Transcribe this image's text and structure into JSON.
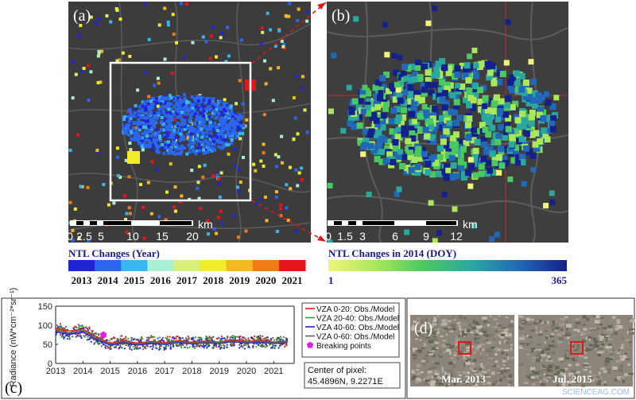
{
  "panel_a": {
    "label": "(a)",
    "scalebar_unit": "km",
    "scalebar_ticks": [
      "0",
      "2.5",
      "5",
      "10",
      "15",
      "20"
    ],
    "legend_title": "NTL Changes (Year)",
    "legend_years": [
      "2013",
      "2014",
      "2015",
      "2016",
      "2017",
      "2018",
      "2019",
      "2020",
      "2021"
    ],
    "legend_colors": [
      "#1f24d6",
      "#2a66f0",
      "#38b6f0",
      "#a8f0d4",
      "#d6f07a",
      "#f0ec28",
      "#f5b81e",
      "#f27c14",
      "#e8141c"
    ]
  },
  "panel_b": {
    "label": "(b)",
    "scalebar_unit": "km",
    "scalebar_ticks": [
      "0",
      "1.5",
      "3",
      "6",
      "9",
      "12"
    ],
    "legend_title": "NTL Changes in 2014 (DOY)",
    "legend_min": "1",
    "legend_max": "365",
    "legend_colors": [
      "#f0f57a",
      "#a8e85a",
      "#4cc860",
      "#2aa8a0",
      "#2268b8",
      "#14208c"
    ]
  },
  "panel_c": {
    "label": "(c)",
    "chart_data": {
      "type": "line",
      "ylabel": "Radiance (nW*cm⁻²*sr⁻¹)",
      "xlabel": "",
      "x_ticks": [
        "2013",
        "2014",
        "2015",
        "2016",
        "2017",
        "2018",
        "2019",
        "2020",
        "2021"
      ],
      "y_ticks": [
        0,
        50,
        100,
        150
      ],
      "ylim": [
        0,
        150
      ],
      "xlim": [
        2013,
        2021.75
      ],
      "series": [
        {
          "name": "VZA 0-20: Obs./Model",
          "color": "#e02020",
          "x": [
            2013.0,
            2013.5,
            2014.0,
            2014.5,
            2015.0,
            2015.5,
            2016.0,
            2016.5,
            2017.0,
            2017.5,
            2018.0,
            2018.5,
            2019.0,
            2019.5,
            2020.0,
            2020.5,
            2021.0,
            2021.5
          ],
          "values": [
            92,
            85,
            90,
            70,
            52,
            60,
            53,
            58,
            54,
            60,
            55,
            58,
            56,
            62,
            57,
            60,
            56,
            58
          ]
        },
        {
          "name": "VZA 20-40: Obs./Model",
          "color": "#22b022",
          "x": [
            2013.0,
            2013.5,
            2014.0,
            2014.5,
            2015.0,
            2015.5,
            2016.0,
            2016.5,
            2017.0,
            2017.5,
            2018.0,
            2018.5,
            2019.0,
            2019.5,
            2020.0,
            2020.5,
            2021.0,
            2021.5
          ],
          "values": [
            88,
            80,
            86,
            66,
            50,
            57,
            50,
            55,
            52,
            57,
            53,
            56,
            54,
            59,
            55,
            58,
            54,
            56
          ]
        },
        {
          "name": "VZA 40-60: Obs./Model",
          "color": "#2222d0",
          "x": [
            2013.0,
            2013.5,
            2014.0,
            2014.5,
            2015.0,
            2015.5,
            2016.0,
            2016.5,
            2017.0,
            2017.5,
            2018.0,
            2018.5,
            2019.0,
            2019.5,
            2020.0,
            2020.5,
            2021.0,
            2021.5
          ],
          "values": [
            84,
            76,
            82,
            62,
            48,
            54,
            48,
            52,
            50,
            55,
            51,
            54,
            52,
            57,
            53,
            56,
            52,
            54
          ]
        },
        {
          "name": "VZA 0-60: Obs./Model",
          "color": "#606060",
          "x": [
            2013.0,
            2013.5,
            2014.0,
            2014.5,
            2015.0,
            2015.5,
            2016.0,
            2016.5,
            2017.0,
            2017.5,
            2018.0,
            2018.5,
            2019.0,
            2019.5,
            2020.0,
            2020.5,
            2021.0,
            2021.5
          ],
          "values": [
            88,
            80,
            86,
            66,
            50,
            57,
            50,
            55,
            52,
            57,
            53,
            56,
            54,
            59,
            55,
            58,
            54,
            56
          ]
        }
      ],
      "breaking_points": {
        "name": "Breaking points",
        "color": "#e020e0",
        "x": [
          2014.75
        ],
        "values": [
          75
        ]
      }
    },
    "center_label": "Center of pixel:",
    "center_value": "45.4896N, 9.2271E"
  },
  "panel_d": {
    "label": "(d)",
    "caption_left": "Mar. 2013",
    "caption_right": "Jul. 2015"
  },
  "watermark": "SCIENCEAG.COM"
}
